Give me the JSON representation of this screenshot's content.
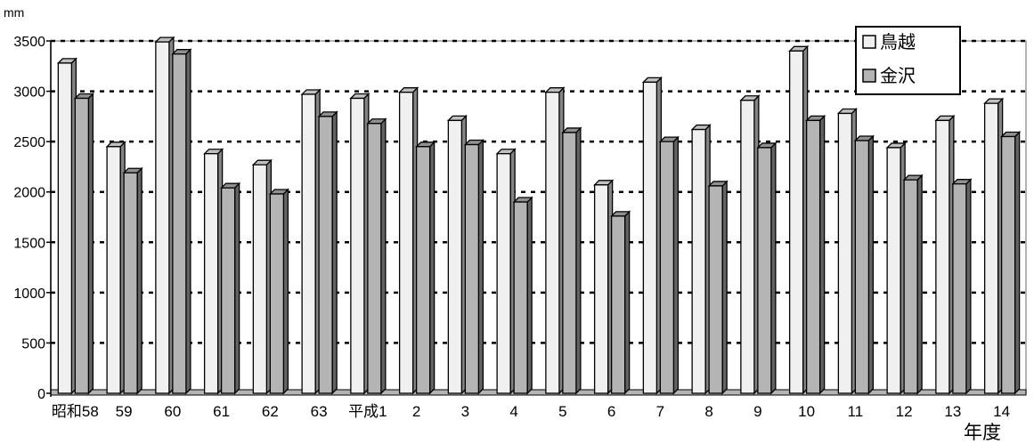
{
  "chart_data": {
    "type": "bar",
    "y_unit": "mm",
    "xlabel": "年度",
    "ylim": [
      0,
      3500
    ],
    "yticks": [
      0,
      500,
      1000,
      1500,
      2000,
      2500,
      3000,
      3500
    ],
    "grid": true,
    "legend_position": "top-right",
    "categories": [
      "昭和58",
      "59",
      "60",
      "61",
      "62",
      "63",
      "平成1",
      "2",
      "3",
      "4",
      "5",
      "6",
      "7",
      "8",
      "9",
      "10",
      "11",
      "12",
      "13",
      "14"
    ],
    "series": [
      {
        "name": "鳥越",
        "color": "#f0f0f0",
        "values": [
          3280,
          2450,
          3490,
          2380,
          2270,
          2970,
          2930,
          2990,
          2710,
          2380,
          2990,
          2070,
          3090,
          2620,
          2910,
          3400,
          2780,
          2440,
          2710,
          2880
        ]
      },
      {
        "name": "金沢",
        "color": "#b4b4b4",
        "values": [
          2930,
          2190,
          3370,
          2040,
          1980,
          2750,
          2680,
          2450,
          2470,
          1900,
          2590,
          1760,
          2500,
          2060,
          2440,
          2710,
          2510,
          2120,
          2080,
          2550
        ]
      }
    ],
    "legend_marker": "□"
  }
}
